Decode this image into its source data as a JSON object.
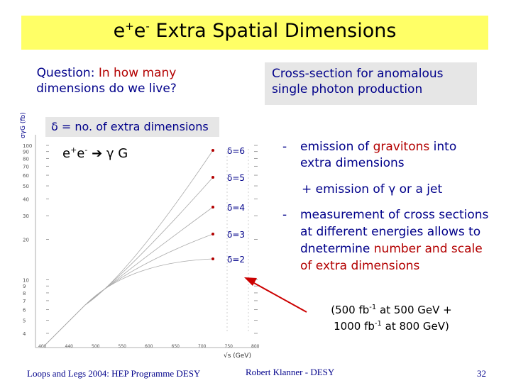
{
  "slide": {
    "title_pre": "e",
    "title_sup1": "+",
    "title_mid": "e",
    "title_sup2": "-",
    "title_rest": " Extra Spatial Dimensions",
    "question_prefix": "Question:  ",
    "question_hl": "In how many",
    "question_line2": "dimensions do we live?",
    "cross_section_line1": "Cross-section for anomalous",
    "cross_section_line2": "single photon production",
    "delta_def": "δ = no. of extra dimensions",
    "reaction_e1": "e",
    "reaction_sup1": "+",
    "reaction_e2": "e",
    "reaction_sup2": "-",
    "reaction_rest": "  γ G",
    "bullet1_pre": "emission of ",
    "bullet1_red": "gravitons",
    "bullet1_post": " into extra dimensions",
    "bullet2": "+ emission of γ or a jet",
    "bullet3_pre": "measurement of cross sections at different energies allows to dnetermine ",
    "bullet3_red": "number and scale of extra dimensions",
    "lumi_a1": "(500 fb",
    "lumi_sup1": "-1",
    "lumi_a2": " at 500 GeV +",
    "lumi_b1": "1000 fb",
    "lumi_sup2": "-1",
    "lumi_b2": " at 800 GeV)",
    "footer_left": "Loops and Legs 2004: HEP Programme DESY",
    "footer_mid": "Robert Klanner - DESY",
    "page_number": "32",
    "dash": "-"
  },
  "plot": {
    "ylabel": "σγG (fb)",
    "xlabel": "√s (GeV)",
    "y_ticks": [
      "100",
      "90",
      "80",
      "70",
      "60",
      "50",
      "40",
      "30",
      "20",
      "10",
      "9",
      "8",
      "7",
      "6",
      "5",
      "4"
    ],
    "x_ticks": [
      "400",
      "440",
      "500",
      "550",
      "600",
      "650",
      "700",
      "750",
      "800"
    ],
    "curve_labels": [
      "δ=6",
      "δ=5",
      "δ=4",
      "δ=3",
      "δ=2"
    ],
    "colors": {
      "accent_red": "#b30000",
      "text_blue": "#00008a",
      "title_yellow": "#ffff66",
      "box_gray": "#e6e6e6"
    }
  }
}
